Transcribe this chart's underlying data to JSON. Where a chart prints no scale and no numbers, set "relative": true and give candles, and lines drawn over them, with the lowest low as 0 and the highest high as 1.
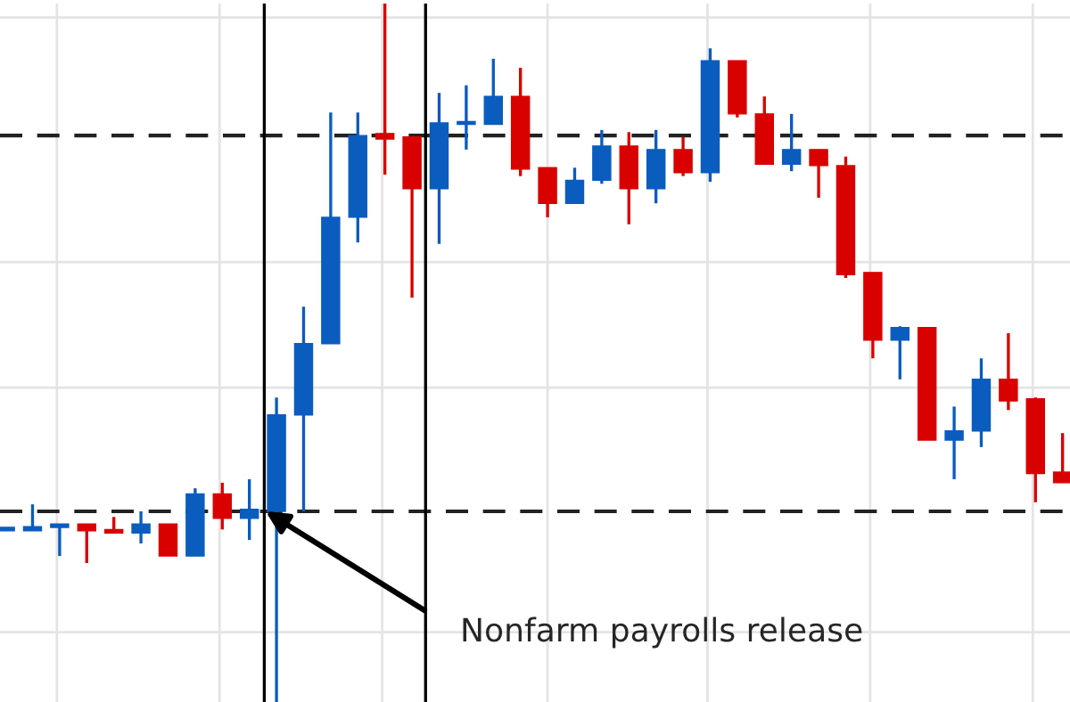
{
  "chart_data": {
    "type": "candlestick",
    "relative": true,
    "grid": true,
    "categories": [
      null,
      null,
      null,
      null,
      null,
      null,
      null,
      null,
      null,
      null,
      null,
      null,
      null,
      null,
      null,
      null,
      null,
      null,
      null,
      null,
      null,
      null,
      null,
      null,
      null,
      null,
      null,
      null,
      null,
      null,
      null,
      null,
      null,
      null,
      null,
      null,
      null,
      null,
      null,
      null
    ],
    "colors": [
      "#0a5cbf",
      "#0a5cbf",
      "#0a5cbf",
      "#d90000",
      "#d90000",
      "#0a5cbf",
      "#d90000",
      "#0a5cbf",
      "#d90000",
      "#0a5cbf",
      "#0a5cbf",
      "#0a5cbf",
      "#0a5cbf",
      "#0a5cbf",
      "#d90000",
      "#d90000",
      "#0a5cbf",
      "#0a5cbf",
      "#0a5cbf",
      "#d90000",
      "#d90000",
      "#0a5cbf",
      "#0a5cbf",
      "#d90000",
      "#0a5cbf",
      "#d90000",
      "#0a5cbf",
      "#d90000",
      "#d90000",
      "#0a5cbf",
      "#d90000",
      "#d90000",
      "#d90000",
      "#0a5cbf",
      "#d90000",
      "#0a5cbf",
      "#0a5cbf",
      "#d90000",
      "#d90000",
      "#d90000"
    ],
    "ohlc": [
      [
        0.245,
        0.25,
        0.245,
        0.25
      ],
      [
        0.245,
        0.283,
        0.245,
        0.251
      ],
      [
        0.25,
        0.255,
        0.209,
        0.255
      ],
      [
        0.255,
        0.255,
        0.199,
        0.245
      ],
      [
        0.247,
        0.265,
        0.242,
        0.242
      ],
      [
        0.242,
        0.273,
        0.227,
        0.255
      ],
      [
        0.255,
        0.255,
        0.209,
        0.209
      ],
      [
        0.209,
        0.306,
        0.209,
        0.298
      ],
      [
        0.298,
        0.314,
        0.247,
        0.263
      ],
      [
        0.263,
        0.319,
        0.232,
        0.276
      ],
      [
        0.273,
        0.436,
        0,
        0.411
      ],
      [
        0.411,
        0.566,
        0.273,
        0.513
      ],
      [
        0.513,
        0.844,
        0.513,
        0.694
      ],
      [
        0.694,
        0.844,
        0.658,
        0.811
      ],
      [
        0.814,
        1,
        0.755,
        0.806
      ],
      [
        0.809,
        0.809,
        0.579,
        0.735
      ],
      [
        0.735,
        0.872,
        0.656,
        0.829
      ],
      [
        0.827,
        0.883,
        0.791,
        0.829
      ],
      [
        0.827,
        0.921,
        0.827,
        0.867
      ],
      [
        0.867,
        0.908,
        0.753,
        0.763
      ],
      [
        0.765,
        0.765,
        0.694,
        0.714
      ],
      [
        0.714,
        0.765,
        0.714,
        0.747
      ],
      [
        0.747,
        0.819,
        0.742,
        0.796
      ],
      [
        0.796,
        0.816,
        0.684,
        0.735
      ],
      [
        0.735,
        0.819,
        0.714,
        0.791
      ],
      [
        0.791,
        0.809,
        0.753,
        0.758
      ],
      [
        0.758,
        0.936,
        0.745,
        0.918
      ],
      [
        0.918,
        0.918,
        0.837,
        0.842
      ],
      [
        0.842,
        0.867,
        0.77,
        0.77
      ],
      [
        0.77,
        0.842,
        0.76,
        0.791
      ],
      [
        0.791,
        0.791,
        0.722,
        0.768
      ],
      [
        0.768,
        0.781,
        0.607,
        0.612
      ],
      [
        0.615,
        0.615,
        0.492,
        0.518
      ],
      [
        0.518,
        0.538,
        0.462,
        0.536
      ],
      [
        0.536,
        0.536,
        0.375,
        0.375
      ],
      [
        0.375,
        0.423,
        0.319,
        0.388
      ],
      [
        0.388,
        0.492,
        0.365,
        0.462
      ],
      [
        0.462,
        0.528,
        0.418,
        0.431
      ],
      [
        0.434,
        0.436,
        0.286,
        0.327
      ],
      [
        0.329,
        0.385,
        0.314,
        0.314
      ]
    ],
    "ref_lines": [
      {
        "axis": "y",
        "value": 0.811,
        "line_style": "dashed",
        "color": "#222222"
      },
      {
        "axis": "y",
        "value": 0.273,
        "line_style": "dashed",
        "color": "#222222"
      }
    ],
    "annotations": [
      "Nonfarm payrolls release"
    ]
  }
}
